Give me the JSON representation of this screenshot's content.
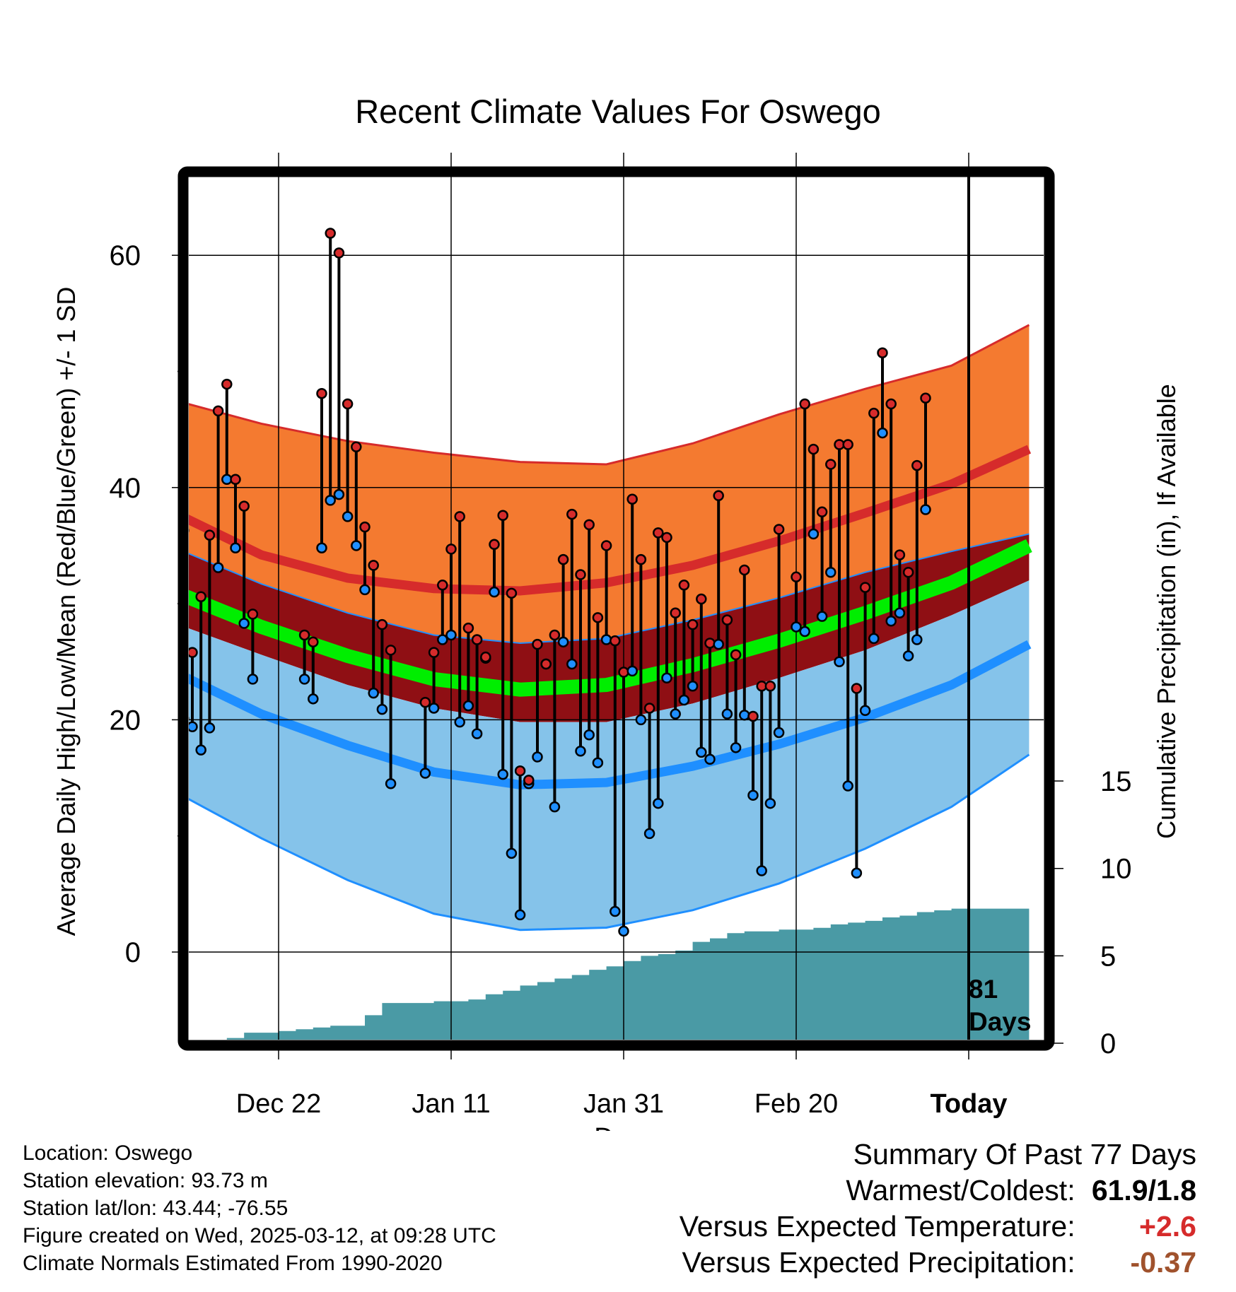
{
  "chart_data": {
    "type": "line",
    "title": "Recent Climate Values For Oswego",
    "xlabel": "Day",
    "ylabel": "Average Daily High/Low/Mean (Red/Blue/Green) +/- 1 SD",
    "ylabel_right": "Cumulative Precipitation (in), If Available",
    "ylim": [
      -8,
      67
    ],
    "y_ticks": [
      0,
      20,
      40,
      60
    ],
    "y2lim": [
      0,
      15
    ],
    "y2_ticks": [
      0,
      5,
      10,
      15
    ],
    "xlim": [
      -12,
      87
    ],
    "x_ticks": [
      {
        "day": 0,
        "label": "Dec 22"
      },
      {
        "day": 20,
        "label": "Jan 11"
      },
      {
        "day": 40,
        "label": "Jan 31"
      },
      {
        "day": 60,
        "label": "Feb 20"
      },
      {
        "day": 80,
        "label": "Today"
      }
    ],
    "today_day": 80,
    "today_label": "81\nDays",
    "grid": true,
    "normals": {
      "day": [
        -12,
        -2,
        8,
        18,
        28,
        38,
        48,
        58,
        68,
        78,
        87
      ],
      "high_mean": [
        37.8,
        34.2,
        32.2,
        31.3,
        31.1,
        31.8,
        33.3,
        35.4,
        37.8,
        40.3,
        43.3
      ],
      "high_sd_upper": [
        47.5,
        45.5,
        44.0,
        43.0,
        42.2,
        42.0,
        43.8,
        46.3,
        48.5,
        50.5,
        54.0
      ],
      "mean_mean": [
        31.0,
        28.0,
        25.5,
        23.5,
        22.6,
        23.0,
        24.7,
        26.8,
        29.2,
        31.8,
        35.0
      ],
      "mean_sd_upper": [
        34.8,
        31.7,
        29.2,
        27.3,
        26.6,
        27.0,
        28.6,
        30.5,
        32.7,
        34.5,
        36.0
      ],
      "mean_sd_lower": [
        28.3,
        25.6,
        23.0,
        21.0,
        19.8,
        19.8,
        21.4,
        23.6,
        26.0,
        29.0,
        32.0
      ],
      "low_mean": [
        24.1,
        20.5,
        17.8,
        15.5,
        14.4,
        14.6,
        16.0,
        17.9,
        20.2,
        23.0,
        26.5
      ],
      "low_sd_lower": [
        13.8,
        9.8,
        6.2,
        3.3,
        1.9,
        2.1,
        3.6,
        5.9,
        8.9,
        12.5,
        17.0
      ]
    },
    "observations": {
      "day": [
        -11,
        -10,
        -9,
        -8,
        -7,
        -6,
        -5,
        -4,
        -3,
        3,
        4,
        5,
        6,
        7,
        8,
        9,
        10,
        11,
        12,
        13,
        17,
        18,
        19,
        20,
        21,
        22,
        23,
        24,
        25,
        26,
        27,
        28,
        29,
        30,
        31,
        32,
        33,
        34,
        35,
        36,
        37,
        38,
        39,
        40,
        41,
        42,
        43,
        44,
        45,
        46,
        47,
        48,
        49,
        50,
        51,
        52,
        53,
        54,
        55,
        56,
        57,
        58,
        60,
        61,
        62,
        63,
        64,
        65,
        66,
        67,
        68,
        69,
        70,
        71,
        72,
        73,
        74,
        75,
        76,
        77,
        78
      ],
      "high": [
        36.3,
        25.8,
        30.6,
        35.9,
        46.6,
        48.9,
        40.7,
        38.4,
        29.1,
        27.3,
        26.7,
        48.1,
        61.9,
        60.2,
        47.2,
        43.5,
        36.6,
        33.3,
        28.2,
        26.0,
        21.5,
        25.8,
        31.6,
        34.7,
        37.5,
        27.9,
        26.9,
        25.4,
        35.1,
        37.6,
        30.9,
        15.6,
        14.8,
        26.5,
        24.8,
        27.3,
        33.8,
        37.7,
        32.5,
        36.8,
        28.8,
        35.0,
        26.8,
        24.1,
        39.0,
        33.8,
        21.0,
        36.1,
        35.7,
        29.2,
        31.6,
        28.2,
        30.4,
        26.6,
        39.3,
        28.6,
        25.6,
        32.9,
        20.3,
        22.9,
        22.9,
        36.4,
        32.3,
        47.2,
        43.3,
        37.9,
        42.0,
        43.7,
        43.7,
        22.7,
        31.4,
        46.4,
        51.6,
        47.2,
        34.2,
        32.7,
        41.9,
        47.7
      ],
      "low": [
        20.1,
        19.4,
        17.4,
        19.3,
        33.1,
        40.7,
        34.8,
        28.3,
        23.5,
        23.5,
        21.8,
        34.8,
        38.9,
        39.4,
        37.5,
        35.0,
        31.2,
        22.3,
        20.9,
        14.5,
        15.4,
        21.0,
        26.9,
        27.3,
        19.8,
        21.2,
        18.8,
        25.3,
        31.0,
        15.3,
        8.5,
        3.2,
        14.5,
        16.8,
        24.8,
        12.5,
        26.7,
        24.8,
        17.3,
        18.7,
        16.3,
        26.9,
        3.5,
        1.8,
        24.2,
        20.0,
        10.2,
        12.8,
        23.6,
        20.5,
        21.7,
        22.9,
        17.2,
        16.6,
        26.5,
        20.5,
        17.6,
        20.4,
        13.5,
        7.0,
        12.8,
        18.9,
        28.0,
        27.6,
        36.0,
        28.9,
        32.7,
        25.0,
        14.3,
        6.8,
        20.8,
        27.0,
        44.7,
        28.5,
        29.2,
        25.5,
        26.9,
        38.1
      ]
    },
    "precipitation": {
      "day": [
        -11,
        -8,
        -6,
        -4,
        -2,
        0,
        2,
        4,
        6,
        8,
        10,
        12,
        14,
        16,
        18,
        20,
        22,
        24,
        26,
        28,
        30,
        32,
        34,
        36,
        38,
        40,
        42,
        44,
        46,
        48,
        50,
        52,
        54,
        56,
        58,
        60,
        62,
        64,
        66,
        68,
        70,
        72,
        74,
        76,
        78,
        80,
        87
      ],
      "cumulative": [
        0.0,
        0.1,
        0.3,
        0.6,
        0.6,
        0.7,
        0.8,
        0.9,
        1.0,
        1.0,
        1.6,
        2.3,
        2.3,
        2.3,
        2.4,
        2.4,
        2.5,
        2.8,
        3.0,
        3.3,
        3.5,
        3.7,
        3.9,
        4.2,
        4.4,
        4.7,
        5.0,
        5.1,
        5.3,
        5.8,
        6.0,
        6.3,
        6.4,
        6.4,
        6.5,
        6.5,
        6.6,
        6.8,
        6.9,
        7.0,
        7.2,
        7.3,
        7.5,
        7.6,
        7.7,
        7.7,
        7.7
      ]
    },
    "colors": {
      "high_band": "#f47a30",
      "high_edge": "#d62b2b",
      "mean_band": "#8f0f14",
      "mean_line": "#00ee00",
      "low_band": "#85c3ea",
      "low_line": "#1f8fff",
      "precip": "#4a9aa5",
      "high_marker": "#d62b2b",
      "low_marker": "#1f8fff"
    }
  },
  "info": {
    "location": "Location: Oswego",
    "elevation": "Station elevation: 93.73 m",
    "latlon": "Station lat/lon: 43.44; -76.55",
    "created": "Figure created on Wed, 2025-03-12, at 09:28 UTC",
    "normals": "Climate Normals Estimated From 1990-2020"
  },
  "summary": {
    "title": "Summary Of Past 77 Days",
    "warm_label": "Warmest/Coldest:",
    "warm_value": "61.9/1.8",
    "temp_label": "Versus Expected Temperature:",
    "temp_value": "+2.6",
    "temp_color": "#d62b2b",
    "precip_label": "Versus Expected Precipitation:",
    "precip_value": "-0.37",
    "precip_color": "#a0522d"
  }
}
